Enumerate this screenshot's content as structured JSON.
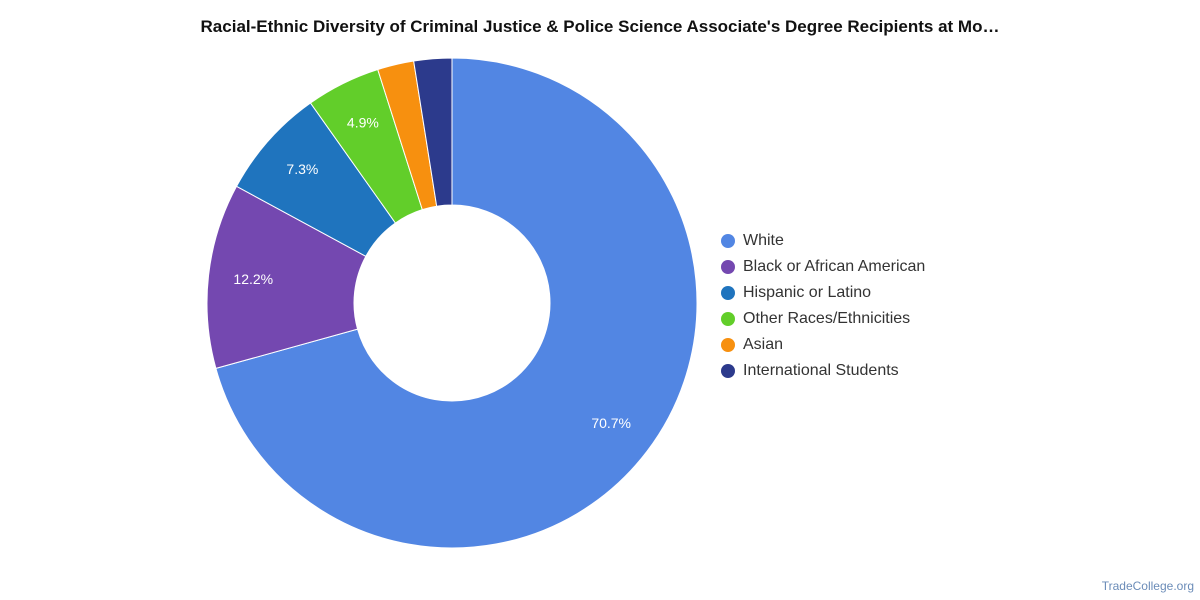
{
  "chart_data": {
    "type": "pie",
    "title": "Racial-Ethnic Diversity of Criminal Justice & Police Science Associate's Degree Recipients at Mo…",
    "donut": true,
    "legend_position": "right",
    "slices": [
      {
        "name": "White",
        "value": 70.7,
        "label": "70.7%",
        "color": "#5286E3"
      },
      {
        "name": "Black or African American",
        "value": 12.2,
        "label": "12.2%",
        "color": "#7448B0"
      },
      {
        "name": "Hispanic or Latino",
        "value": 7.3,
        "label": "7.3%",
        "color": "#1F74BE"
      },
      {
        "name": "Other Races/Ethnicities",
        "value": 4.9,
        "label": "4.9%",
        "color": "#62CE2A"
      },
      {
        "name": "Asian",
        "value": 2.4,
        "label": "",
        "color": "#F7900F"
      },
      {
        "name": "International Students",
        "value": 2.5,
        "label": "",
        "color": "#2C3A8C"
      }
    ]
  },
  "watermark": "TradeCollege.org"
}
